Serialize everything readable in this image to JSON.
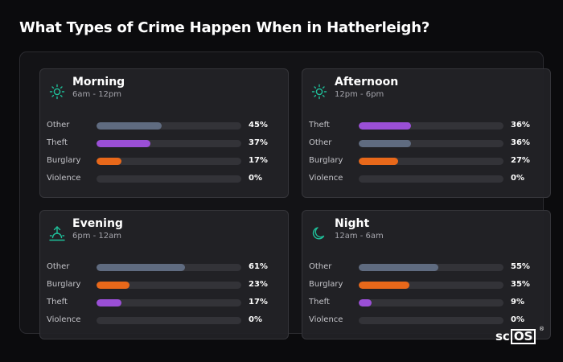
{
  "title": "What Types of Crime Happen When in Hatherleigh?",
  "logo": {
    "prefix": "sc",
    "boxed": "OS",
    "mark": "®"
  },
  "colors": {
    "Other": "#5f6b80",
    "Theft": "#9a4fd6",
    "Burglary": "#e8681a",
    "Violence": "#c8383a",
    "icon": "#1fc09a"
  },
  "chart_data": [
    {
      "type": "bar",
      "title": "Morning",
      "subtitle": "6am - 12pm",
      "icon": "sun-icon",
      "categories": [
        "Other",
        "Theft",
        "Burglary",
        "Violence"
      ],
      "values": [
        45,
        37,
        17,
        0
      ],
      "labels": [
        "45%",
        "37%",
        "17%",
        "0%"
      ],
      "xlim": [
        0,
        100
      ]
    },
    {
      "type": "bar",
      "title": "Afternoon",
      "subtitle": "12pm - 6pm",
      "icon": "sun-icon",
      "categories": [
        "Theft",
        "Other",
        "Burglary",
        "Violence"
      ],
      "values": [
        36,
        36,
        27,
        0
      ],
      "labels": [
        "36%",
        "36%",
        "27%",
        "0%"
      ],
      "xlim": [
        0,
        100
      ]
    },
    {
      "type": "bar",
      "title": "Evening",
      "subtitle": "6pm - 12am",
      "icon": "sunset-icon",
      "categories": [
        "Other",
        "Burglary",
        "Theft",
        "Violence"
      ],
      "values": [
        61,
        23,
        17,
        0
      ],
      "labels": [
        "61%",
        "23%",
        "17%",
        "0%"
      ],
      "xlim": [
        0,
        100
      ]
    },
    {
      "type": "bar",
      "title": "Night",
      "subtitle": "12am - 6am",
      "icon": "moon-icon",
      "categories": [
        "Other",
        "Burglary",
        "Theft",
        "Violence"
      ],
      "values": [
        55,
        35,
        9,
        0
      ],
      "labels": [
        "55%",
        "35%",
        "9%",
        "0%"
      ],
      "xlim": [
        0,
        100
      ]
    }
  ]
}
